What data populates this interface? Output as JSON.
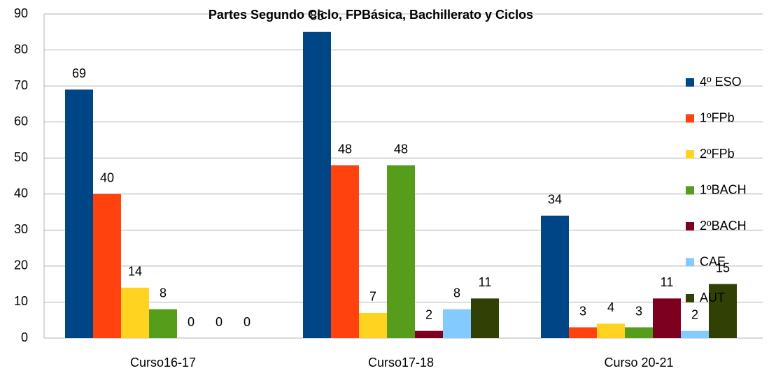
{
  "chart_data": {
    "type": "bar",
    "title": "Partes Segundo Ciclo, FPBásica, Bachillerato y Ciclos",
    "categories": [
      "Curso16-17",
      "Curso17-18",
      "Curso 20-21"
    ],
    "series": [
      {
        "name": "4º ESO",
        "color": "#004586",
        "values": [
          69,
          85,
          34
        ]
      },
      {
        "name": "1ºFPb",
        "color": "#ff420e",
        "values": [
          40,
          48,
          3
        ]
      },
      {
        "name": "2ºFPb",
        "color": "#ffd320",
        "values": [
          14,
          7,
          4
        ]
      },
      {
        "name": "1ºBACH",
        "color": "#579d1c",
        "values": [
          8,
          48,
          3
        ]
      },
      {
        "name": "2ºBACH",
        "color": "#7e0021",
        "values": [
          0,
          2,
          11
        ]
      },
      {
        "name": "CAE",
        "color": "#83caff",
        "values": [
          0,
          8,
          2
        ]
      },
      {
        "name": "AUT",
        "color": "#314004",
        "values": [
          0,
          11,
          15
        ]
      }
    ],
    "ylim": [
      0,
      90
    ],
    "yticks": [
      0,
      10,
      20,
      30,
      40,
      50,
      60,
      70,
      80,
      90
    ],
    "grid": true,
    "legend": "right"
  }
}
